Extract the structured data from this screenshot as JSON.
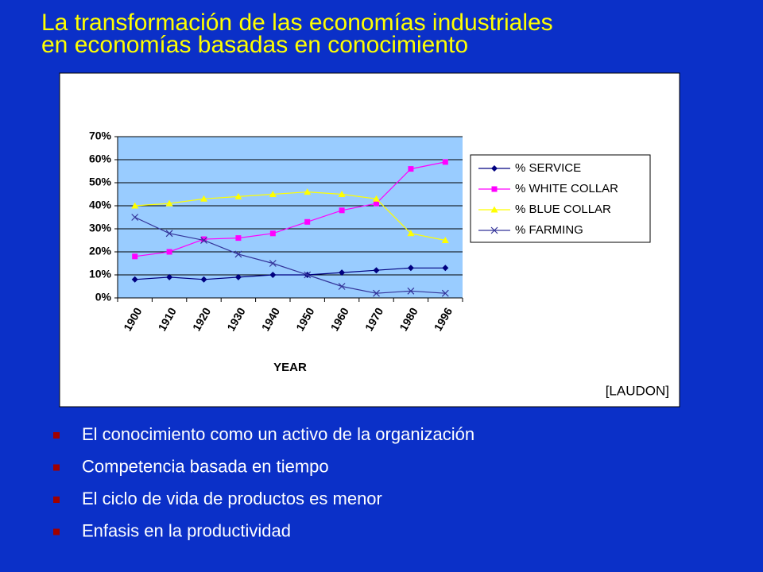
{
  "slide": {
    "title_lines": [
      "La transformación de las economías industriales",
      "en economías basadas en conocimiento"
    ],
    "source": "[LAUDON]",
    "bullets": [
      "El conocimiento como un activo de la organización",
      "Competencia basada en tiempo",
      "El ciclo de vida de productos es menor",
      "Enfasis en la productividad"
    ]
  },
  "chart_data": {
    "type": "line",
    "x_label": "YEAR",
    "categories": [
      "1900",
      "1910",
      "1920",
      "1930",
      "1940",
      "1950",
      "1960",
      "1970",
      "1980",
      "1996"
    ],
    "ylim": [
      0,
      70
    ],
    "yticks": [
      {
        "value": 0,
        "label": "0%"
      },
      {
        "value": 10,
        "label": "10%"
      },
      {
        "value": 20,
        "label": "20%"
      },
      {
        "value": 30,
        "label": "30%"
      },
      {
        "value": 40,
        "label": "40%"
      },
      {
        "value": 50,
        "label": "50%"
      },
      {
        "value": 60,
        "label": "60%"
      },
      {
        "value": 70,
        "label": "70%"
      }
    ],
    "grid": true,
    "series": [
      {
        "name": "% SERVICE",
        "color": "#000080",
        "marker": "diamond",
        "values": [
          8,
          9,
          8,
          9,
          10,
          10,
          11,
          12,
          13,
          13
        ]
      },
      {
        "name": "% WHITE COLLAR",
        "color": "#ff00ff",
        "marker": "square",
        "values": [
          18,
          20,
          25.5,
          26,
          28,
          33,
          38,
          41,
          56,
          59
        ]
      },
      {
        "name": "% BLUE COLLAR",
        "color": "#ffff00",
        "marker": "triangle",
        "values": [
          40,
          41,
          43,
          44,
          45,
          46,
          45,
          43,
          28,
          25
        ]
      },
      {
        "name": "% FARMING",
        "color": "#333399",
        "marker": "x",
        "values": [
          35,
          28,
          25,
          19,
          15,
          10,
          5,
          2,
          3,
          2
        ]
      }
    ]
  }
}
